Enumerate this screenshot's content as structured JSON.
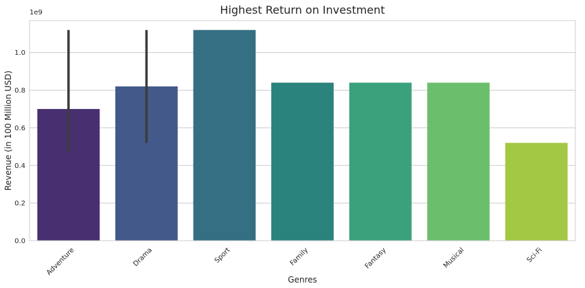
{
  "chart_data": {
    "type": "bar",
    "title": "Highest Return on Investment",
    "xlabel": "Genres",
    "ylabel": "Revenue (in 100 Million USD)",
    "y_offset_label": "1e9",
    "categories": [
      "Adventure",
      "Drama",
      "Sport",
      "Family",
      "Fantasy",
      "Musical",
      "Sci-Fi"
    ],
    "values": [
      0.7,
      0.82,
      1.12,
      0.84,
      0.84,
      0.84,
      0.52
    ],
    "error_bars": [
      {
        "low": 0.47,
        "high": 1.12
      },
      {
        "low": 0.52,
        "high": 1.12
      },
      null,
      null,
      null,
      null,
      null
    ],
    "colors": [
      "#482f70",
      "#43598a",
      "#356f83",
      "#2a837c",
      "#3ba17d",
      "#6bbf6c",
      "#a3c844"
    ],
    "error_color": "#3c3c3c",
    "ylim": [
      0,
      1.17
    ],
    "yticks": [
      0.0,
      0.2,
      0.4,
      0.6,
      0.8,
      1.0
    ],
    "ytick_labels": [
      "0.0",
      "0.2",
      "0.4",
      "0.6",
      "0.8",
      "1.0"
    ],
    "grid": true,
    "grid_axis": "y",
    "legend": "none"
  }
}
